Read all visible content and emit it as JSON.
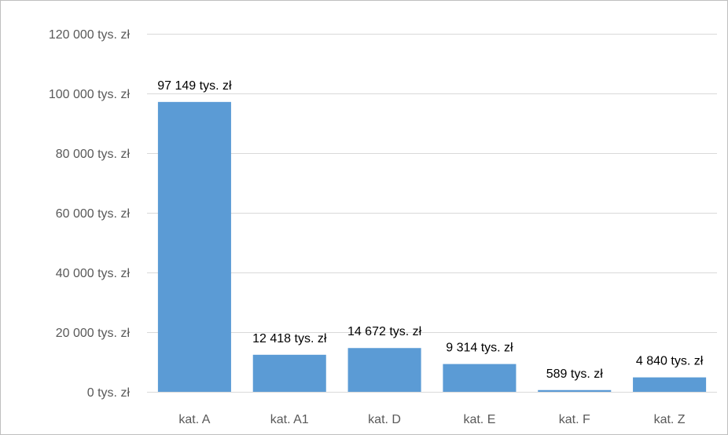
{
  "chart_data": {
    "type": "bar",
    "title": "",
    "xlabel": "",
    "ylabel": "",
    "categories": [
      "kat. A",
      "kat. A1",
      "kat. D",
      "kat. E",
      "kat. F",
      "kat. Z"
    ],
    "values": [
      97149,
      12418,
      14672,
      9314,
      589,
      4840
    ],
    "data_labels": [
      "97 149 tys. zł",
      "12 418 tys. zł",
      "14 672 tys. zł",
      "9 314 tys. zł",
      "589 tys. zł",
      "4 840 tys. zł"
    ],
    "ylim": [
      0,
      120000
    ],
    "yticks": [
      0,
      20000,
      40000,
      60000,
      80000,
      100000,
      120000
    ],
    "ytick_labels": [
      "0 tys. zł",
      "20 000 tys. zł",
      "40 000 tys. zł",
      "60 000 tys. zł",
      "80 000 tys. zł",
      "100 000 tys. zł",
      "120 000 tys. zł"
    ],
    "grid": true,
    "legend": "none",
    "colors": {
      "bar": "#5b9bd5",
      "grid": "#d9d9d9",
      "axis": "#d9d9d9",
      "tick_text": "#595959",
      "label_text": "#000000"
    }
  }
}
